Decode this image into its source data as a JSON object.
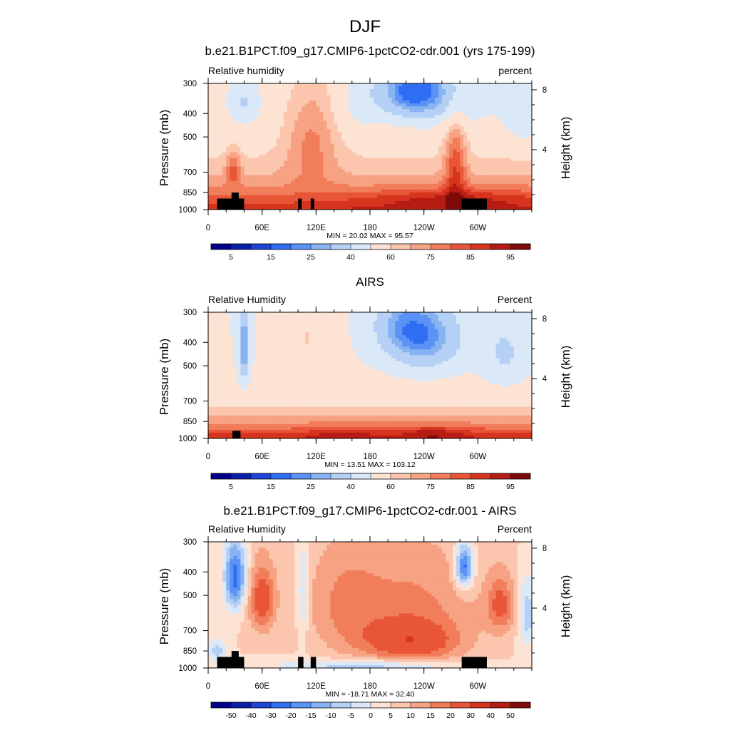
{
  "figure": {
    "title": "DJF"
  },
  "panels": [
    {
      "title": "b.e21.B1PCT.f09_g17.CMIP6-1pctCO2-cdr.001 (yrs 175-199)",
      "left_label": "Relative humidity",
      "right_label": "percent",
      "ylabel": "Pressure (mb)",
      "ylabel_right": "Height (km)",
      "minmax": "MIN =  20.02  MAX =  95.57",
      "colorbar": "absolute"
    },
    {
      "title": "AIRS",
      "left_label": "Relative Humidity",
      "right_label": "Percent",
      "ylabel": "Pressure (mb)",
      "ylabel_right": "Height (km)",
      "minmax": "MIN =  13.51  MAX = 103.12",
      "colorbar": "absolute"
    },
    {
      "title": "b.e21.B1PCT.f09_g17.CMIP6-1pctCO2-cdr.001 - AIRS",
      "left_label": "Relative Humidity",
      "right_label": "Percent",
      "ylabel": "Pressure (mb)",
      "ylabel_right": "Height (km)",
      "minmax": "MIN = -18.71  MAX =  32.40",
      "colorbar": "difference"
    }
  ],
  "chart_data": [
    {
      "type": "heatmap",
      "panel": 0,
      "title": "b.e21.B1PCT.f09_g17.CMIP6-1pctCO2-cdr.001 (yrs 175-199)",
      "variable": "Relative humidity",
      "units": "percent",
      "x_axis": {
        "range_deg": [
          0,
          360
        ],
        "ticks_deg": [
          0,
          60,
          120,
          180,
          240,
          300
        ],
        "tick_labels": [
          "0",
          "60E",
          "120E",
          "180",
          "120W",
          "60W"
        ]
      },
      "y_axis": {
        "label": "Pressure (mb)",
        "range": [
          1000,
          300
        ],
        "ticks": [
          300,
          400,
          500,
          700,
          850,
          1000
        ]
      },
      "y2_axis": {
        "label": "Height (km)",
        "ticks": [
          4,
          8
        ]
      },
      "min": 20.02,
      "max": 95.57,
      "levels": [
        5,
        10,
        15,
        20,
        25,
        30,
        40,
        50,
        60,
        65,
        70,
        75,
        80,
        85,
        90,
        95
      ],
      "colorbar_labels": [
        "5",
        "15",
        "25",
        "40",
        "60",
        "75",
        "85",
        "95"
      ]
    },
    {
      "type": "heatmap",
      "panel": 1,
      "title": "AIRS",
      "variable": "Relative Humidity",
      "units": "Percent",
      "x_axis": {
        "range_deg": [
          0,
          360
        ],
        "ticks_deg": [
          0,
          60,
          120,
          180,
          240,
          300
        ],
        "tick_labels": [
          "0",
          "60E",
          "120E",
          "180",
          "120W",
          "60W"
        ]
      },
      "y_axis": {
        "label": "Pressure (mb)",
        "range": [
          1000,
          300
        ],
        "ticks": [
          300,
          400,
          500,
          700,
          850,
          1000
        ]
      },
      "y2_axis": {
        "label": "Height (km)",
        "ticks": [
          4,
          8
        ]
      },
      "min": 13.51,
      "max": 103.12,
      "levels": [
        5,
        10,
        15,
        20,
        25,
        30,
        40,
        50,
        60,
        65,
        70,
        75,
        80,
        85,
        90,
        95
      ],
      "colorbar_labels": [
        "5",
        "15",
        "25",
        "40",
        "60",
        "75",
        "85",
        "95"
      ]
    },
    {
      "type": "heatmap",
      "panel": 2,
      "title": "b.e21.B1PCT.f09_g17.CMIP6-1pctCO2-cdr.001 - AIRS",
      "variable": "Relative Humidity",
      "units": "Percent",
      "x_axis": {
        "range_deg": [
          0,
          360
        ],
        "ticks_deg": [
          0,
          60,
          120,
          180,
          240,
          300
        ],
        "tick_labels": [
          "0",
          "60E",
          "120E",
          "180",
          "120W",
          "60W"
        ]
      },
      "y_axis": {
        "label": "Pressure (mb)",
        "range": [
          1000,
          300
        ],
        "ticks": [
          300,
          400,
          500,
          700,
          850,
          1000
        ]
      },
      "y2_axis": {
        "label": "Height (km)",
        "ticks": [
          4,
          8
        ]
      },
      "min": -18.71,
      "max": 32.4,
      "levels": [
        -50,
        -40,
        -30,
        -20,
        -15,
        -10,
        -5,
        0,
        5,
        10,
        15,
        20,
        30,
        40,
        50
      ],
      "colorbar_labels": [
        "-50",
        "-40",
        "-30",
        "-20",
        "-15",
        "-10",
        "-5",
        "0",
        "5",
        "10",
        "15",
        "20",
        "30",
        "40",
        "50"
      ]
    }
  ],
  "colors": {
    "absolute": [
      "#00008c",
      "#0a1fa8",
      "#1c44d6",
      "#2f6ef2",
      "#5a93f5",
      "#88b3f2",
      "#b5d0f5",
      "#dbe8f8",
      "#fde3d4",
      "#fbc6ad",
      "#f6a283",
      "#f17d5b",
      "#e85637",
      "#d6341e",
      "#b71c14",
      "#7e0a0a"
    ],
    "difference": [
      "#00008c",
      "#0a1fa8",
      "#1c44d6",
      "#2f6ef2",
      "#5a93f5",
      "#88b3f2",
      "#b5d0f5",
      "#dbe8f8",
      "#fde3d4",
      "#fbc6ad",
      "#f6a283",
      "#f17d5b",
      "#e85637",
      "#d6341e",
      "#b71c14",
      "#7e0a0a"
    ]
  }
}
